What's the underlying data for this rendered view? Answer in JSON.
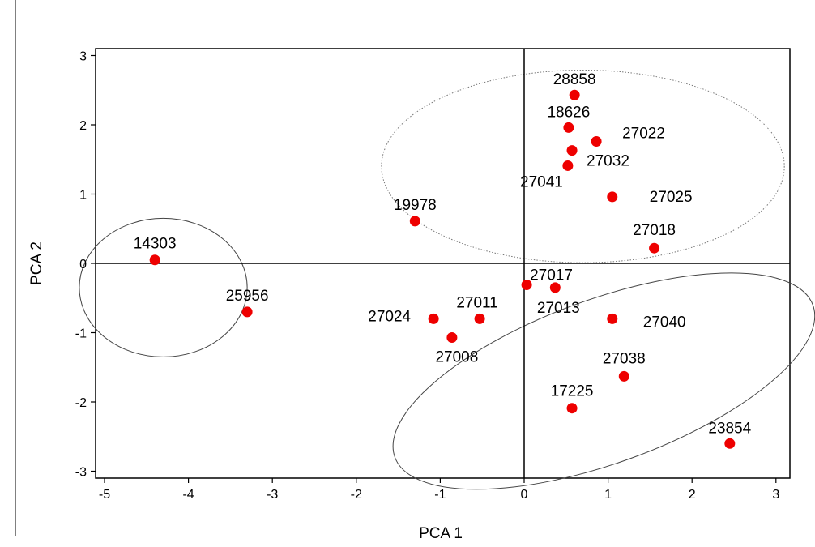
{
  "chart_data": {
    "type": "scatter",
    "xlabel": "PCA 1",
    "ylabel": "PCA 2",
    "xlim": [
      -5.2,
      3.2
    ],
    "ylim": [
      -3.15,
      3.1
    ],
    "xticks": [
      -5,
      -4,
      -3,
      -2,
      -1,
      0,
      1,
      2,
      3
    ],
    "yticks": [
      -3,
      -2,
      -1,
      0,
      1,
      2,
      3
    ],
    "reference_lines": {
      "x": 0,
      "y": 0
    },
    "grid": false,
    "marker_color": "#ee0000",
    "points": [
      {
        "label": "28858",
        "x": 0.6,
        "y": 2.43
      },
      {
        "label": "18626",
        "x": 0.53,
        "y": 1.96
      },
      {
        "label": "27022",
        "x": 0.86,
        "y": 1.76
      },
      {
        "label": "27032",
        "x": 0.57,
        "y": 1.63
      },
      {
        "label": "27041",
        "x": 0.52,
        "y": 1.41
      },
      {
        "label": "27025",
        "x": 1.05,
        "y": 0.96
      },
      {
        "label": "19978",
        "x": -1.3,
        "y": 0.61
      },
      {
        "label": "27018",
        "x": 1.55,
        "y": 0.22
      },
      {
        "label": "14303",
        "x": -4.4,
        "y": 0.05
      },
      {
        "label": "27017",
        "x": 0.03,
        "y": -0.31
      },
      {
        "label": "27013",
        "x": 0.37,
        "y": -0.35
      },
      {
        "label": "25956",
        "x": -3.3,
        "y": -0.7
      },
      {
        "label": "27024",
        "x": -1.08,
        "y": -0.8
      },
      {
        "label": "27011",
        "x": -0.53,
        "y": -0.8
      },
      {
        "label": "27040",
        "x": 1.05,
        "y": -0.8
      },
      {
        "label": "27008",
        "x": -0.86,
        "y": -1.07
      },
      {
        "label": "27038",
        "x": 1.19,
        "y": -1.63
      },
      {
        "label": "17225",
        "x": 0.57,
        "y": -2.09
      },
      {
        "label": "23854",
        "x": 2.45,
        "y": -2.6
      }
    ],
    "ellipses": [
      {
        "name": "group-left",
        "cx": -4.3,
        "cy": -0.35,
        "rx": 1.0,
        "ry": 1.0,
        "angle": 0,
        "style": "solid"
      },
      {
        "name": "group-top",
        "cx": 0.7,
        "cy": 1.4,
        "rx": 2.4,
        "ry": 1.39,
        "angle": 0,
        "style": "dotted"
      },
      {
        "name": "group-bottom",
        "cx": 0.95,
        "cy": -1.7,
        "rx": 2.65,
        "ry": 1.18,
        "angle": -20,
        "style": "solid"
      }
    ]
  }
}
